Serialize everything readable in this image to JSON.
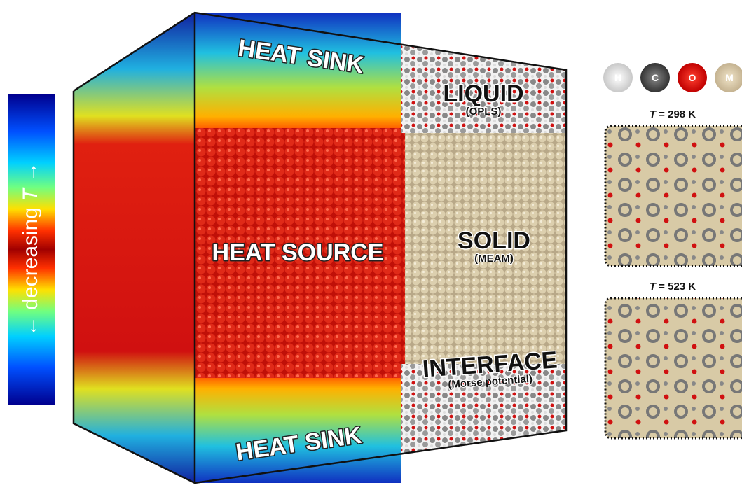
{
  "colorbar": {
    "label": [
      "← decreasing ",
      "T",
      " →"
    ]
  },
  "regions": {
    "heat_sink_top": {
      "label": "HEAT SINK"
    },
    "liquid": {
      "label": "LIQUID",
      "sublabel": "(OPLS)"
    },
    "heat_source": {
      "label": "HEAT SOURCE"
    },
    "solid": {
      "label": "SOLID",
      "sublabel": "(MEAM)"
    },
    "interface": {
      "label": "INTERFACE",
      "sublabel": "(Morse potential)"
    },
    "heat_sink_bottom": {
      "label": "HEAT SINK"
    }
  },
  "legend": [
    {
      "symbol": "H"
    },
    {
      "symbol": "C"
    },
    {
      "symbol": "O"
    },
    {
      "symbol": "M"
    }
  ],
  "panels": [
    {
      "variable": "T",
      "rest": " = 298 K"
    },
    {
      "variable": "T",
      "rest": " = 523 K"
    }
  ]
}
